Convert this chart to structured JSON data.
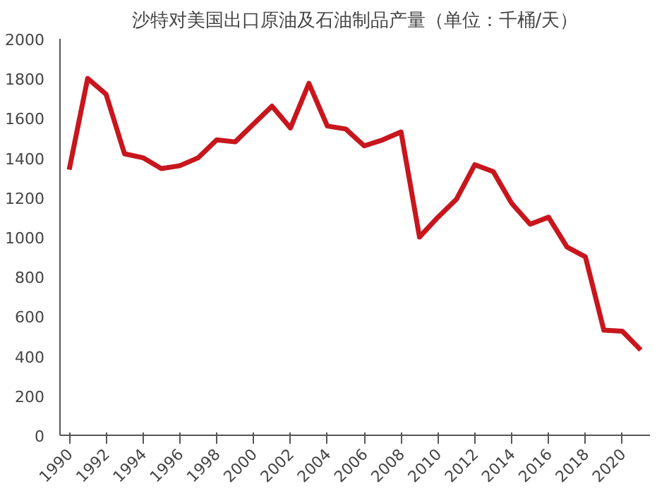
{
  "chart_data": {
    "type": "line",
    "title": "沙特对美国出口原油及石油制品产量（单位：千桶/天）",
    "x": [
      1990,
      1991,
      1992,
      1993,
      1994,
      1995,
      1996,
      1997,
      1998,
      1999,
      2000,
      2001,
      2002,
      2003,
      2004,
      2005,
      2006,
      2007,
      2008,
      2009,
      2010,
      2011,
      2012,
      2013,
      2014,
      2015,
      2016,
      2017,
      2018,
      2019,
      2020,
      2021
    ],
    "series": [
      {
        "color": "#c8161d",
        "values": [
          1340,
          1800,
          1720,
          1420,
          1400,
          1345,
          1360,
          1400,
          1490,
          1480,
          1570,
          1660,
          1550,
          1775,
          1560,
          1545,
          1460,
          1490,
          1530,
          1000,
          1100,
          1190,
          1365,
          1330,
          1170,
          1065,
          1100,
          950,
          900,
          530,
          525,
          430
        ]
      }
    ],
    "xlim": [
      1989.5,
      2021.5
    ],
    "xticks": [
      1990,
      1992,
      1994,
      1996,
      1998,
      2000,
      2002,
      2004,
      2006,
      2008,
      2010,
      2012,
      2014,
      2016,
      2018,
      2020
    ],
    "ylim": [
      0,
      2000
    ],
    "yticks": [
      0,
      200,
      400,
      600,
      800,
      1000,
      1200,
      1400,
      1600,
      1800,
      2000
    ],
    "grid": false,
    "marker": "none",
    "line_style": "solid"
  }
}
